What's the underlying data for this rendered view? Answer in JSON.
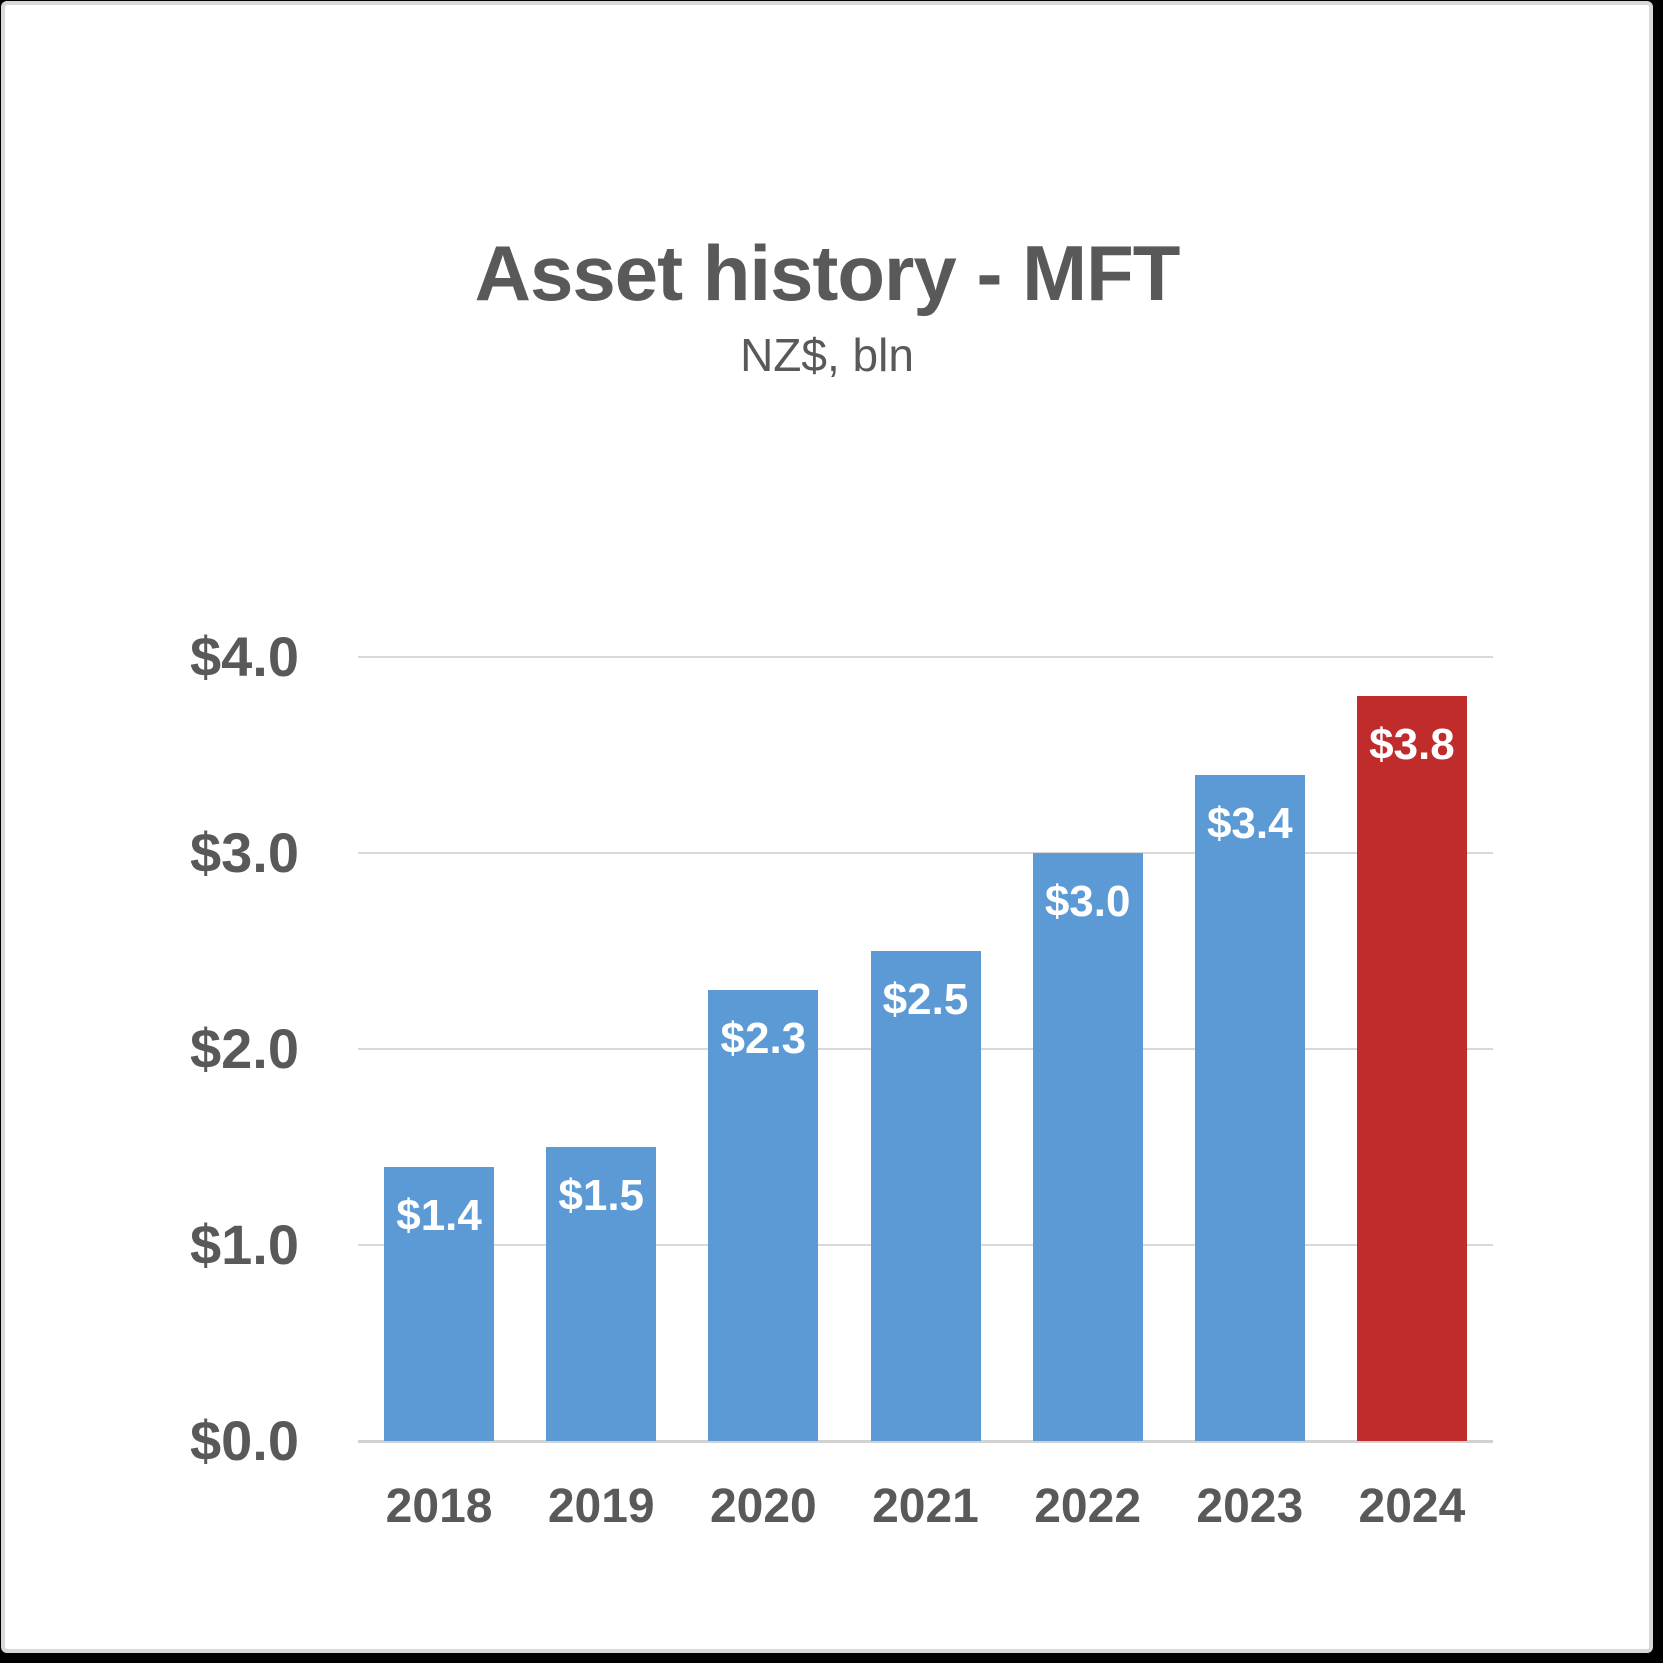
{
  "header": {
    "title": "Asset history - MFT",
    "subtitle": "NZ$, bln"
  },
  "chart_data": {
    "type": "bar",
    "title": "Asset history - MFT",
    "subtitle": "NZ$, bln",
    "categories": [
      "2018",
      "2019",
      "2020",
      "2021",
      "2022",
      "2023",
      "2024"
    ],
    "values": [
      1.4,
      1.5,
      2.3,
      2.5,
      3.0,
      3.4,
      3.8
    ],
    "bar_labels": [
      "$1.4",
      "$1.5",
      "$2.3",
      "$2.5",
      "$3.0",
      "$3.4",
      "$3.8"
    ],
    "bar_colors": [
      "#5B9AD5",
      "#5B9AD5",
      "#5B9AD5",
      "#5B9AD5",
      "#5B9AD5",
      "#5B9AD5",
      "#C02B2B"
    ],
    "yticks": [
      {
        "label": "$0.0",
        "value": 0.0
      },
      {
        "label": "$1.0",
        "value": 1.0
      },
      {
        "label": "$2.0",
        "value": 2.0
      },
      {
        "label": "$3.0",
        "value": 3.0
      },
      {
        "label": "$4.0",
        "value": 4.0
      }
    ],
    "ylim": [
      0.0,
      4.0
    ],
    "xlabel": "",
    "ylabel": "",
    "grid": true,
    "legend": "none",
    "colors": {
      "bar_default": "#5B9AD5",
      "bar_highlight": "#C02B2B",
      "text": "#595959",
      "bar_label_text": "#FFFFFF",
      "gridline": "#D9D9D9",
      "axis_line": "#D2D2D2",
      "background": "#FFFFFF",
      "frame": "#000000",
      "card_border": "#D8D8D8"
    }
  }
}
